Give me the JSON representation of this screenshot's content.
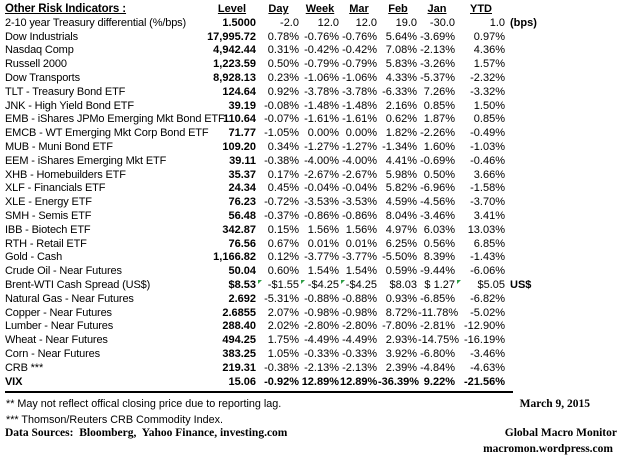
{
  "colors": {
    "flag": "#2e9e44",
    "text": "#000000",
    "rule": "#000000"
  },
  "table": {
    "title": "Other Risk Indicators :",
    "columns": [
      "Level",
      "Day",
      "Week",
      "Mar",
      "Feb",
      "Jan",
      "YTD"
    ],
    "rows": [
      {
        "label": "2-10 year Treasury differential (%/bps)",
        "level": "1.5000",
        "day": "-2.0",
        "week": "12.0",
        "mar": "12.0",
        "feb": "19.0",
        "jan": "-30.0",
        "ytd": "1.0",
        "unit": "(bps)"
      },
      {
        "label": "Dow Industrials",
        "level": "17,995.72",
        "day": "0.78%",
        "week": "-0.76%",
        "mar": "-0.76%",
        "feb": "5.64%",
        "jan": "-3.69%",
        "ytd": "0.97%"
      },
      {
        "label": "Nasdaq Comp",
        "level": "4,942.44",
        "day": "0.31%",
        "week": "-0.42%",
        "mar": "-0.42%",
        "feb": "7.08%",
        "jan": "-2.13%",
        "ytd": "4.36%"
      },
      {
        "label": "Russell 2000",
        "level": "1,223.59",
        "day": "0.50%",
        "week": "-0.79%",
        "mar": "-0.79%",
        "feb": "5.83%",
        "jan": "-3.26%",
        "ytd": "1.57%"
      },
      {
        "label": "Dow Transports",
        "level": "8,928.13",
        "day": "0.23%",
        "week": "-1.06%",
        "mar": "-1.06%",
        "feb": "4.33%",
        "jan": "-5.37%",
        "ytd": "-2.32%"
      },
      {
        "label": "TLT - Treasury Bond ETF",
        "level": "124.64",
        "day": "0.92%",
        "week": "-3.78%",
        "mar": "-3.78%",
        "feb": "-6.33%",
        "jan": "7.26%",
        "ytd": "-3.32%"
      },
      {
        "label": "JNK - High Yield Bond ETF",
        "level": "39.19",
        "day": "-0.08%",
        "week": "-1.48%",
        "mar": "-1.48%",
        "feb": "2.16%",
        "jan": "0.85%",
        "ytd": "1.50%"
      },
      {
        "label": "EMB - iShares JPMo Emerging Mkt Bond ETF",
        "level": "110.64",
        "day": "-0.07%",
        "week": "-1.61%",
        "mar": "-1.61%",
        "feb": "0.62%",
        "jan": "1.87%",
        "ytd": "0.85%"
      },
      {
        "label": "EMCB - WT Emerging Mkt Corp Bond ETF",
        "level": "71.77",
        "day": "-1.05%",
        "week": "0.00%",
        "mar": "0.00%",
        "feb": "1.82%",
        "jan": "-2.26%",
        "ytd": "-0.49%"
      },
      {
        "label": "MUB - Muni Bond ETF",
        "level": "109.20",
        "day": "0.34%",
        "week": "-1.27%",
        "mar": "-1.27%",
        "feb": "-1.34%",
        "jan": "1.60%",
        "ytd": "-1.03%"
      },
      {
        "label": "EEM - iShares Emerging Mkt ETF",
        "level": "39.11",
        "day": "-0.38%",
        "week": "-4.00%",
        "mar": "-4.00%",
        "feb": "4.41%",
        "jan": "-0.69%",
        "ytd": "-0.46%"
      },
      {
        "label": "XHB - Homebuilders ETF",
        "level": "35.37",
        "day": "0.17%",
        "week": "-2.67%",
        "mar": "-2.67%",
        "feb": "5.98%",
        "jan": "0.50%",
        "ytd": "3.66%"
      },
      {
        "label": "XLF - Financials ETF",
        "level": "24.34",
        "day": "0.45%",
        "week": "-0.04%",
        "mar": "-0.04%",
        "feb": "5.82%",
        "jan": "-6.96%",
        "ytd": "-1.58%"
      },
      {
        "label": "XLE - Energy ETF",
        "level": "76.23",
        "day": "-0.72%",
        "week": "-3.53%",
        "mar": "-3.53%",
        "feb": "4.59%",
        "jan": "-4.56%",
        "ytd": "-3.70%"
      },
      {
        "label": "SMH - Semis ETF",
        "level": "56.48",
        "day": "-0.37%",
        "week": "-0.86%",
        "mar": "-0.86%",
        "feb": "8.04%",
        "jan": "-3.46%",
        "ytd": "3.41%"
      },
      {
        "label": "IBB - Biotech ETF",
        "level": "342.87",
        "day": "0.15%",
        "week": "1.56%",
        "mar": "1.56%",
        "feb": "4.97%",
        "jan": "6.03%",
        "ytd": "13.03%"
      },
      {
        "label": "RTH - Retail ETF",
        "level": "76.56",
        "day": "0.67%",
        "week": "0.01%",
        "mar": "0.01%",
        "feb": "6.25%",
        "jan": "0.56%",
        "ytd": "6.85%"
      },
      {
        "label": "Gold - Cash",
        "level": "1,166.82",
        "day": "0.12%",
        "week": "-3.77%",
        "mar": "-3.77%",
        "feb": "-5.50%",
        "jan": "8.39%",
        "ytd": "-1.43%"
      },
      {
        "label": "Crude Oil - Near Futures",
        "level": "50.04",
        "day": "0.60%",
        "week": "1.54%",
        "mar": "1.54%",
        "feb": "0.59%",
        "jan": "-9.44%",
        "ytd": "-6.06%"
      },
      {
        "label": "Brent-WTI Cash Spread (US$)",
        "level": "$8.53",
        "day": "-$1.55",
        "week": "-$4.25",
        "mar": "-$4.25",
        "feb": "$8.03",
        "jan": "$ 1.27",
        "ytd": "$5.05",
        "unit": "US$",
        "flags": [
          "day",
          "week",
          "mar",
          "ytd"
        ]
      },
      {
        "label": "Natural Gas - Near Futures",
        "level": "2.692",
        "day": "-5.31%",
        "week": "-0.88%",
        "mar": "-0.88%",
        "feb": "0.93%",
        "jan": "-6.85%",
        "ytd": "-6.82%"
      },
      {
        "label": "Copper - Near Futures",
        "level": "2.6855",
        "day": "2.07%",
        "week": "-0.98%",
        "mar": "-0.98%",
        "feb": "8.72%",
        "jan": "-11.78%",
        "ytd": "-5.02%"
      },
      {
        "label": "Lumber - Near Futures",
        "level": "288.40",
        "day": "2.02%",
        "week": "-2.80%",
        "mar": "-2.80%",
        "feb": "-7.80%",
        "jan": "-2.81%",
        "ytd": "-12.90%"
      },
      {
        "label": "Wheat - Near Futures",
        "level": "494.25",
        "day": "1.75%",
        "week": "-4.49%",
        "mar": "-4.49%",
        "feb": "2.93%",
        "jan": "-14.75%",
        "ytd": "-16.19%"
      },
      {
        "label": "Corn - Near Futures",
        "level": "383.25",
        "day": "1.05%",
        "week": "-0.33%",
        "mar": "-0.33%",
        "feb": "3.92%",
        "jan": "-6.80%",
        "ytd": "-3.46%"
      },
      {
        "label": "CRB ***",
        "level": "219.31",
        "day": "-0.38%",
        "week": "-2.13%",
        "mar": "-2.13%",
        "feb": "2.39%",
        "jan": "-4.84%",
        "ytd": "-4.63%"
      },
      {
        "label": "VIX",
        "level": "15.06",
        "day": "-0.92%",
        "week": "12.89%",
        "mar": "12.89%",
        "feb": "-36.39%",
        "jan": "9.22%",
        "ytd": "-21.56%",
        "bold": true
      }
    ]
  },
  "footer": {
    "footnote_reporting": "** May not reflect offical closing price due to reporting lag.",
    "footnote_crb": "*** Thomson/Reuters CRB Commodity Index.",
    "data_sources": "Data Sources:  Bloomberg,  Yahoo Finance, investing.com",
    "date": "March 9, 2015",
    "brand": "Global Macro Monitor",
    "url": "macromon.wordpress.com"
  }
}
